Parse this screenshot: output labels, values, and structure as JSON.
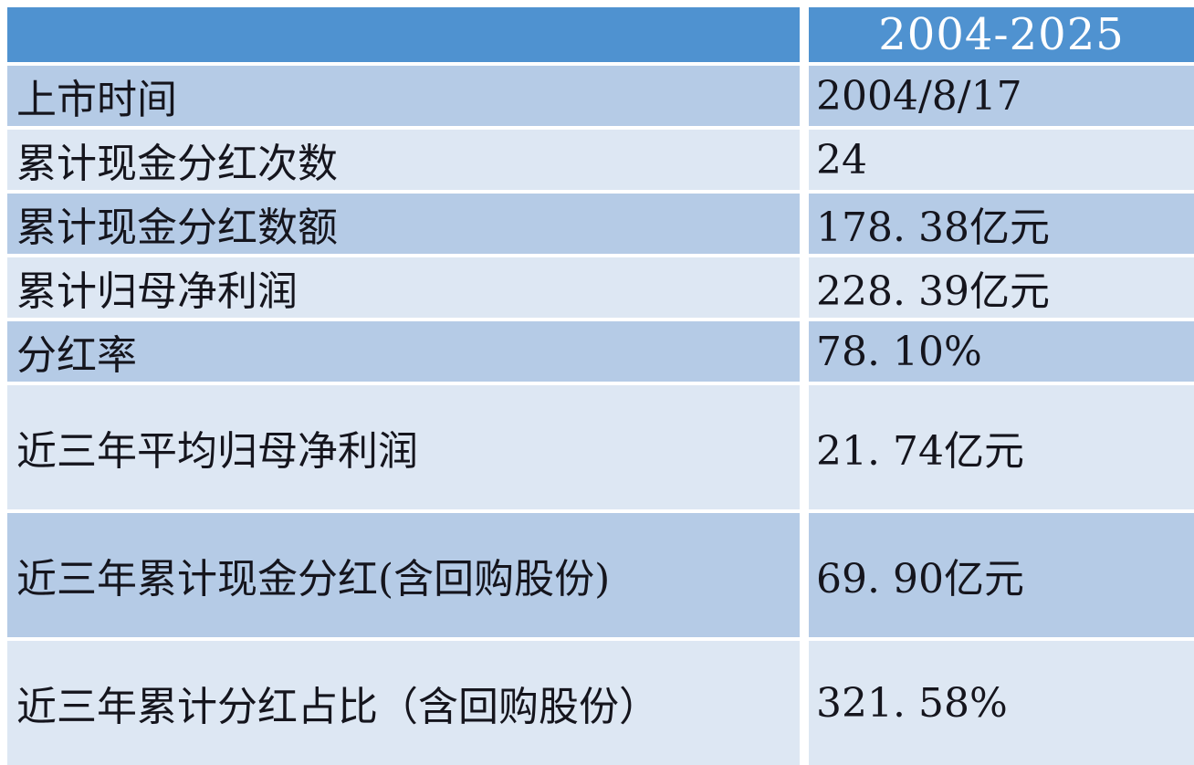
{
  "chart_data": {
    "type": "table",
    "title": "",
    "columns": [
      "",
      "2004-2025"
    ],
    "header": {
      "period": "2004-2025"
    },
    "rows": [
      {
        "label": "上市时间",
        "value": "2004/8/17",
        "tall": false
      },
      {
        "label": "累计现金分红次数",
        "value": "24",
        "tall": false
      },
      {
        "label": "累计现金分红数额",
        "value": "178. 38亿元",
        "tall": false
      },
      {
        "label": "累计归母净利润",
        "value": "228. 39亿元",
        "tall": false
      },
      {
        "label": "分红率",
        "value": "78. 10%",
        "tall": false
      },
      {
        "label": "近三年平均归母净利润",
        "value": "21. 74亿元",
        "tall": true
      },
      {
        "label": "近三年累计现金分红(含回购股份)",
        "value": "69. 90亿元",
        "tall": true
      },
      {
        "label": "近三年累计分红占比（含回购股份）",
        "value": "321. 58%",
        "tall": true
      }
    ]
  },
  "colors": {
    "header_bg": "#4f92d0",
    "header_text": "#ffffff",
    "band_dark": "#b5cbe6",
    "band_light": "#dde7f3",
    "text": "#15151d",
    "separator": "#ffffff"
  }
}
